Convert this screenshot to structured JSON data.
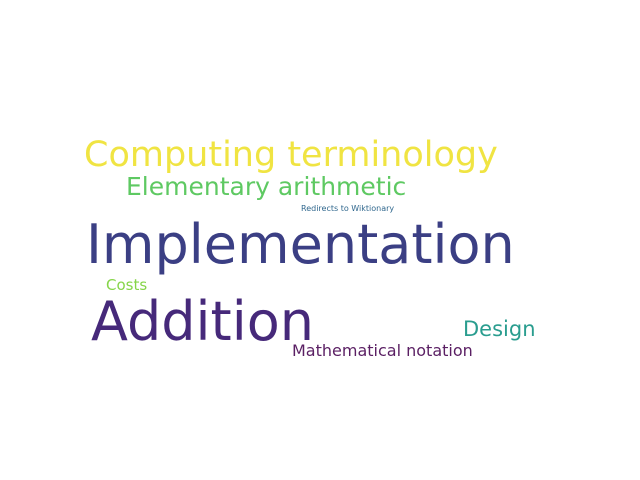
{
  "words": [
    {
      "text": "Computing terminology",
      "color": "#f0e442"
    },
    {
      "text": "Elementary arithmetic",
      "color": "#5ec962"
    },
    {
      "text": "Redirects to Wiktionary",
      "color": "#31688e"
    },
    {
      "text": "Implementation",
      "color": "#3b3f84"
    },
    {
      "text": "Costs",
      "color": "#86d549"
    },
    {
      "text": "Addition",
      "color": "#46297a"
    },
    {
      "text": "Design",
      "color": "#2a9d8f"
    },
    {
      "text": "Mathematical notation",
      "color": "#5a1f63"
    }
  ]
}
